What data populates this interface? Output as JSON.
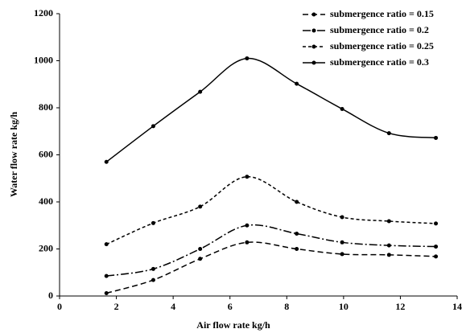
{
  "chart_data": {
    "type": "line",
    "x_label": "Air flow rate   kg/h",
    "y_label": "Water flow rate   kg/h",
    "x": [
      1.65,
      3.3,
      4.95,
      6.6,
      8.35,
      9.95,
      11.6,
      13.25
    ],
    "series": [
      {
        "name": "submergence ratio = 0.15",
        "color": "#000000",
        "dash": "7,4",
        "values": [
          12,
          68,
          158,
          228,
          200,
          178,
          175,
          168
        ]
      },
      {
        "name": "submergence ratio = 0.2",
        "color": "#000000",
        "dash": "10,3,2,3",
        "values": [
          85,
          115,
          200,
          300,
          265,
          228,
          215,
          210
        ]
      },
      {
        "name": "submergence ratio = 0.25",
        "color": "#000000",
        "dash": "4,3",
        "values": [
          220,
          310,
          380,
          507,
          400,
          335,
          318,
          308
        ]
      },
      {
        "name": "submergence ratio = 0.3",
        "color": "#000000",
        "dash": "none",
        "values": [
          570,
          722,
          868,
          1010,
          902,
          795,
          692,
          672
        ]
      }
    ],
    "xlim": [
      0,
      14
    ],
    "xticks": [
      0,
      2,
      4,
      6,
      8,
      10,
      12,
      14
    ],
    "ylim": [
      0,
      1200
    ],
    "yticks": [
      0,
      200,
      400,
      600,
      800,
      1000,
      1200
    ],
    "grid": false,
    "legend": "upper right"
  }
}
